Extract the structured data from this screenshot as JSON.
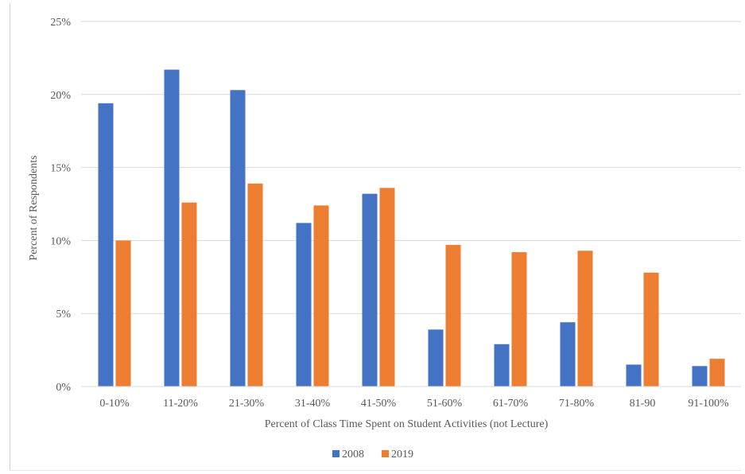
{
  "chart_data": {
    "type": "bar",
    "categories": [
      "0-10%",
      "11-20%",
      "21-30%",
      "31-40%",
      "41-50%",
      "51-60%",
      "61-70%",
      "71-80%",
      "81-90",
      "91-100%"
    ],
    "series": [
      {
        "name": "2008",
        "color": "#4472C4",
        "values": [
          19.4,
          21.7,
          20.3,
          11.2,
          13.2,
          3.9,
          2.9,
          4.4,
          1.5,
          1.4
        ]
      },
      {
        "name": "2019",
        "color": "#ED7D31",
        "values": [
          10.0,
          12.6,
          13.9,
          12.4,
          13.6,
          9.7,
          9.2,
          9.3,
          7.8,
          1.9
        ]
      }
    ],
    "xlabel": "Percent of Class Time Spent on Student Activities (not Lecture)",
    "ylabel": "Percent of Respondents",
    "ylim": [
      0,
      25
    ],
    "yticks": [
      "0%",
      "5%",
      "10%",
      "15%",
      "20%",
      "25%"
    ],
    "grid": true,
    "legend_position": "bottom"
  }
}
